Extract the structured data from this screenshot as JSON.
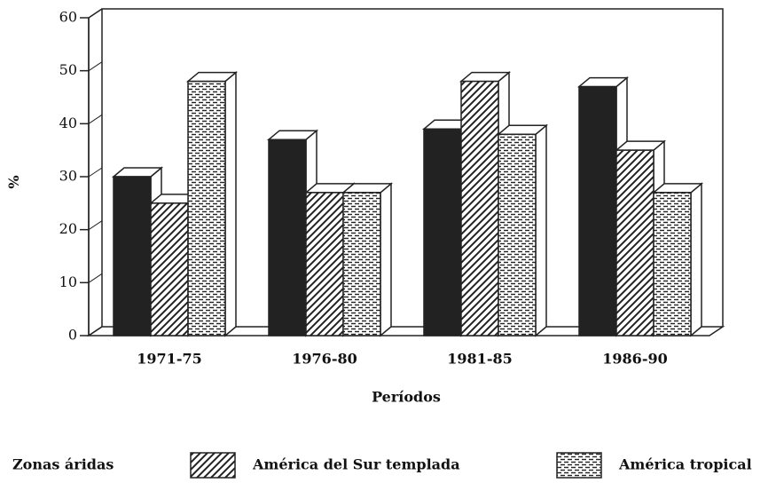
{
  "chart_data": {
    "type": "bar3d",
    "x_label": "Períodos",
    "y_label": "%",
    "categories": [
      "1971-75",
      "1976-80",
      "1981-85",
      "1986-90"
    ],
    "series": [
      {
        "name": "Zonas áridas",
        "color": "#222222",
        "pattern": "solid",
        "values": [
          30,
          37,
          39,
          47
        ]
      },
      {
        "name": "América del Sur templada",
        "color": "#222222",
        "pattern": "hatch",
        "values": [
          25,
          27,
          48,
          35
        ]
      },
      {
        "name": "América tropical",
        "color": "#222222",
        "pattern": "dash",
        "values": [
          48,
          27,
          38,
          27
        ]
      }
    ],
    "ylim": [
      0,
      60
    ],
    "yticks": [
      0,
      10,
      20,
      30,
      40,
      50,
      60
    ]
  }
}
